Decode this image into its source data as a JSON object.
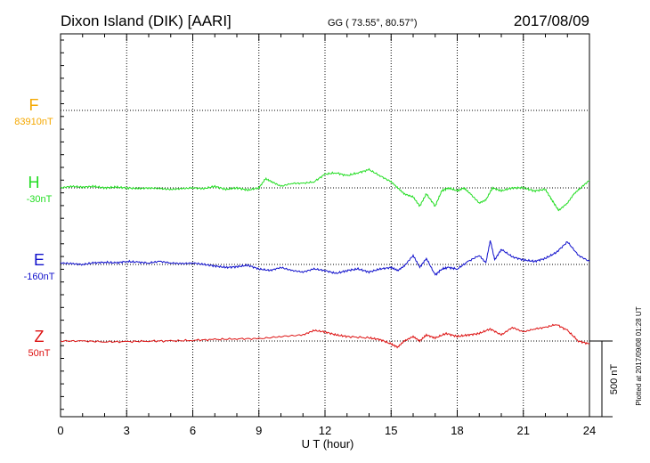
{
  "header": {
    "station": "Dixon Island (DIK)  [AARI]",
    "coords": "GG ( 73.55°,  80.57°)",
    "date": "2017/08/09"
  },
  "footer": {
    "xlabel": "U T (hour)",
    "plotted": "Plotted at 2017/09/08 01:28 UT"
  },
  "scale_bar": {
    "label": "500 nT"
  },
  "colors": {
    "F": "#f5a800",
    "H": "#22dd22",
    "E": "#1111cc",
    "Z": "#dd1111",
    "grid": "#000000"
  },
  "chart_data": {
    "type": "line",
    "xlim": [
      0,
      24
    ],
    "x_ticks": [
      "0",
      "3",
      "6",
      "9",
      "12",
      "15",
      "18",
      "21",
      "24"
    ],
    "grid": true,
    "units": "nT",
    "scale_bar_nT": 500,
    "series": [
      {
        "name": "F",
        "baseline_label": "83910nT",
        "x": [],
        "y": []
      },
      {
        "name": "H",
        "baseline_label": "-30nT",
        "x": [
          0,
          0.5,
          1,
          1.5,
          2,
          2.5,
          3,
          3.5,
          4,
          4.5,
          5,
          5.5,
          6,
          6.5,
          7,
          7.5,
          8,
          8.5,
          9,
          9.3,
          9.6,
          10,
          10.5,
          11,
          11.5,
          12,
          12.5,
          13,
          13.5,
          14,
          14.5,
          15,
          15.3,
          15.6,
          16,
          16.3,
          16.6,
          17,
          17.3,
          17.6,
          18,
          18.3,
          18.6,
          19,
          19.3,
          19.6,
          20,
          20.5,
          21,
          21.5,
          22,
          22.3,
          22.6,
          23,
          23.3,
          23.6,
          24
        ],
        "y": [
          0,
          10,
          5,
          10,
          0,
          5,
          0,
          -5,
          0,
          -5,
          -10,
          -5,
          0,
          -5,
          10,
          -10,
          0,
          -15,
          0,
          60,
          40,
          10,
          30,
          30,
          40,
          90,
          100,
          80,
          100,
          120,
          80,
          40,
          0,
          -40,
          -60,
          -120,
          -40,
          -120,
          -20,
          0,
          -20,
          0,
          -40,
          -100,
          -80,
          0,
          -20,
          0,
          0,
          -20,
          -10,
          -80,
          -150,
          -100,
          -40,
          0,
          50
        ]
      },
      {
        "name": "E",
        "baseline_label": "-160nT",
        "x": [
          0,
          0.5,
          1,
          1.5,
          2,
          2.5,
          3,
          3.5,
          4,
          4.5,
          5,
          5.5,
          6,
          6.5,
          7,
          7.5,
          8,
          8.5,
          9,
          9.5,
          10,
          10.5,
          11,
          11.5,
          12,
          12.5,
          13,
          13.5,
          14,
          14.5,
          15,
          15.3,
          15.6,
          16,
          16.3,
          16.6,
          17,
          17.3,
          17.6,
          18,
          18.5,
          19,
          19.3,
          19.5,
          19.7,
          20,
          20.5,
          21,
          21.5,
          22,
          22.5,
          23,
          23.5,
          24
        ],
        "y": [
          10,
          5,
          0,
          10,
          15,
          10,
          20,
          15,
          10,
          20,
          10,
          5,
          10,
          0,
          -10,
          -20,
          -15,
          -5,
          -30,
          -40,
          -20,
          -40,
          -50,
          -30,
          -40,
          -60,
          -40,
          -30,
          -50,
          -30,
          -20,
          -40,
          -10,
          60,
          -20,
          40,
          -70,
          -30,
          -20,
          -30,
          20,
          60,
          10,
          160,
          30,
          100,
          50,
          30,
          20,
          40,
          80,
          150,
          60,
          20
        ]
      },
      {
        "name": "Z",
        "baseline_label": "50nT",
        "x": [
          0,
          1,
          2,
          3,
          4,
          5,
          6,
          7,
          8,
          9,
          10,
          11,
          11.5,
          12,
          12.5,
          13,
          14,
          14.5,
          15,
          15.3,
          15.6,
          16,
          16.3,
          16.6,
          17,
          17.5,
          18,
          18.5,
          19,
          19.5,
          20,
          20.5,
          21,
          21.5,
          22,
          22.5,
          23,
          23.5,
          24
        ],
        "y": [
          0,
          0,
          -5,
          -5,
          0,
          0,
          5,
          10,
          15,
          15,
          30,
          40,
          70,
          60,
          40,
          30,
          20,
          10,
          -20,
          -40,
          0,
          30,
          0,
          40,
          20,
          50,
          30,
          40,
          50,
          80,
          40,
          90,
          60,
          80,
          90,
          110,
          70,
          0,
          -20
        ]
      }
    ]
  }
}
